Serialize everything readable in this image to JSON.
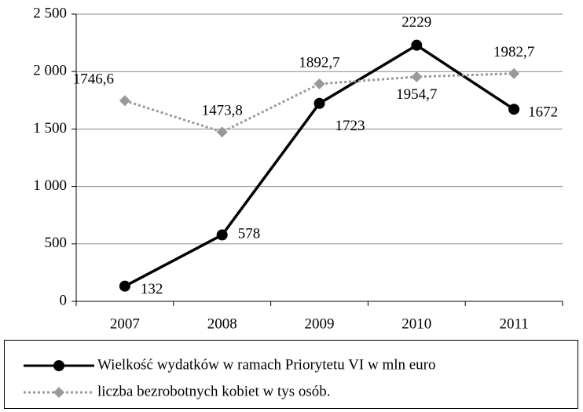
{
  "chart_data": {
    "type": "line",
    "categories": [
      "2007",
      "2008",
      "2009",
      "2010",
      "2011"
    ],
    "series": [
      {
        "name": "Wielkość wydatków w ramach Priorytetu VI w mln euro",
        "color": "#000000",
        "style": "solid",
        "marker": "circle",
        "values": [
          132,
          578,
          1723,
          2229,
          1672
        ]
      },
      {
        "name": "liczba bezrobotnych  kobiet w tys osób.",
        "color": "#999999",
        "style": "dotted",
        "marker": "diamond",
        "values": [
          1746.6,
          1473.8,
          1892.7,
          1954.7,
          1982.7
        ],
        "value_labels": [
          "1746,6",
          "1473,8",
          "1892,7",
          "1954,7",
          "1982,7"
        ]
      }
    ],
    "ylim": [
      0,
      2500
    ],
    "yticks": [
      0,
      500,
      {
        "value": 1000,
        "label": "1 000"
      },
      {
        "value": 1500,
        "label": "1 500"
      },
      {
        "value": 2000,
        "label": "2 000"
      },
      {
        "value": 2500,
        "label": "2 500"
      }
    ],
    "grid": true,
    "legend": "bottom"
  }
}
